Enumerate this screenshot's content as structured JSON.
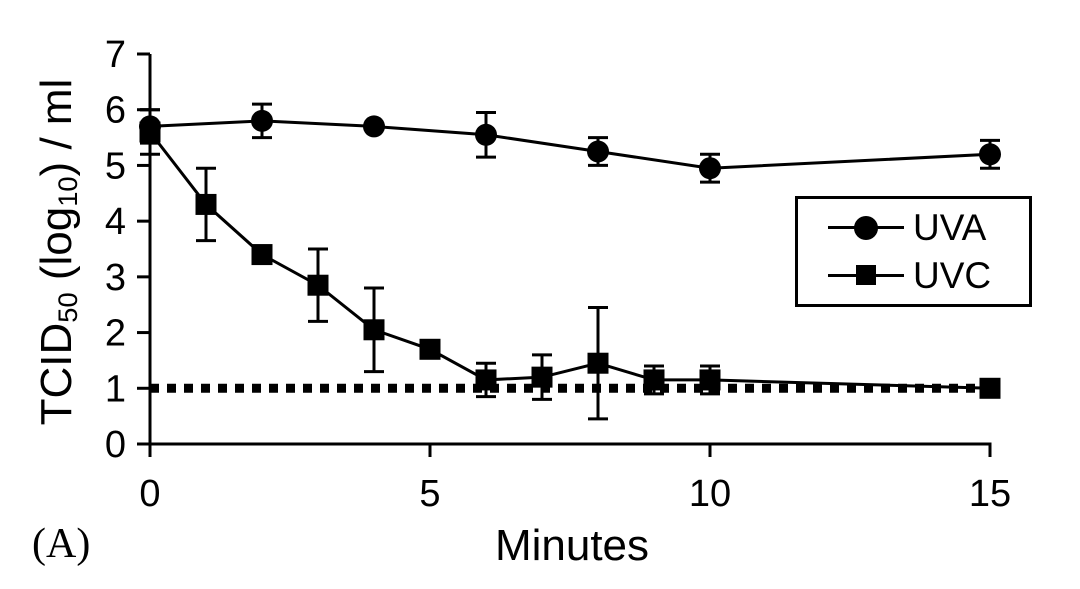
{
  "panel_label": "(A)",
  "chart_data": {
    "type": "line",
    "title": "",
    "xlabel": "Minutes",
    "ylabel": "TCID50 (log10) / ml",
    "ylabel_parts": {
      "base1": "TCID",
      "sub1": "50",
      "base2": " (log",
      "sub2": "10",
      "base3": ") / ml"
    },
    "xlim": [
      0,
      15
    ],
    "ylim": [
      0,
      7
    ],
    "xticks": [
      0,
      5,
      10,
      15
    ],
    "yticks": [
      0,
      1,
      2,
      3,
      4,
      5,
      6,
      7
    ],
    "grid": false,
    "legend_position": "right-middle",
    "reference_line": {
      "y": 1,
      "style": "dotted"
    },
    "series": [
      {
        "name": "UVA",
        "marker": "circle",
        "x": [
          0,
          2,
          4,
          6,
          8,
          10,
          15
        ],
        "y": [
          5.7,
          5.8,
          5.7,
          5.55,
          5.25,
          4.95,
          5.2
        ],
        "yerr": [
          0.3,
          0.3,
          0,
          0.4,
          0.25,
          0.25,
          0.25
        ]
      },
      {
        "name": "UVC",
        "marker": "square",
        "x": [
          0,
          1,
          2,
          3,
          4,
          5,
          6,
          7,
          8,
          9,
          10,
          15
        ],
        "y": [
          5.6,
          4.3,
          3.4,
          2.85,
          2.05,
          1.7,
          1.15,
          1.2,
          1.45,
          1.15,
          1.15,
          1.0
        ],
        "yerr": [
          0.4,
          0.65,
          0,
          0.65,
          0.75,
          0,
          0.3,
          0.4,
          1.0,
          0.25,
          0.25,
          0
        ]
      }
    ],
    "colors": {
      "foreground": "#000000",
      "background": "#ffffff"
    }
  }
}
